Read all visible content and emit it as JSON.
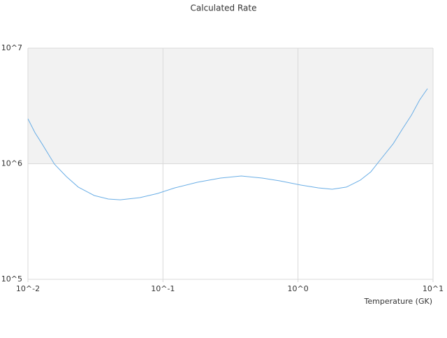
{
  "chart_data": {
    "type": "line",
    "title": "Calculated Rate",
    "x_label": "Temperature (GK)",
    "x": [
      0.01,
      0.01127,
      0.0127,
      0.01574,
      0.0193,
      0.0236,
      0.031,
      0.0394,
      0.0483,
      0.0675,
      0.091,
      0.1225,
      0.1795,
      0.266,
      0.38,
      0.544,
      0.733,
      1.05,
      1.41,
      1.79,
      2.28,
      2.89,
      3.46,
      4.14,
      5.07,
      5.92,
      6.91,
      7.97,
      9.1
    ],
    "series": [
      {
        "name": "Calculated Rate",
        "color": "#6aaee6",
        "values": [
          2450000,
          1860000,
          1490000,
          990000,
          773000,
          628000,
          531000,
          495000,
          488000,
          509000,
          553000,
          619000,
          692000,
          752000,
          784000,
          752000,
          711000,
          654000,
          619000,
          602000,
          628000,
          721000,
          851000,
          1110000,
          1490000,
          1990000,
          2630000,
          3570000,
          4470000
        ]
      }
    ],
    "xlim": [
      0.01,
      10
    ],
    "ylim": [
      100000,
      10000000
    ],
    "xticks": [
      {
        "value": 0.01,
        "label": "10^-2"
      },
      {
        "value": 0.1,
        "label": "10^-1"
      },
      {
        "value": 1,
        "label": "10^0"
      },
      {
        "value": 10,
        "label": "10^1"
      }
    ],
    "yticks": [
      {
        "value": 100000,
        "label": "10^5"
      },
      {
        "value": 1000000,
        "label": "10^6"
      },
      {
        "value": 10000000,
        "label": "10^7"
      }
    ],
    "xscale": "log",
    "yscale": "log",
    "band_color": "#f2f2f2",
    "border_color": "#d9d9d9"
  }
}
